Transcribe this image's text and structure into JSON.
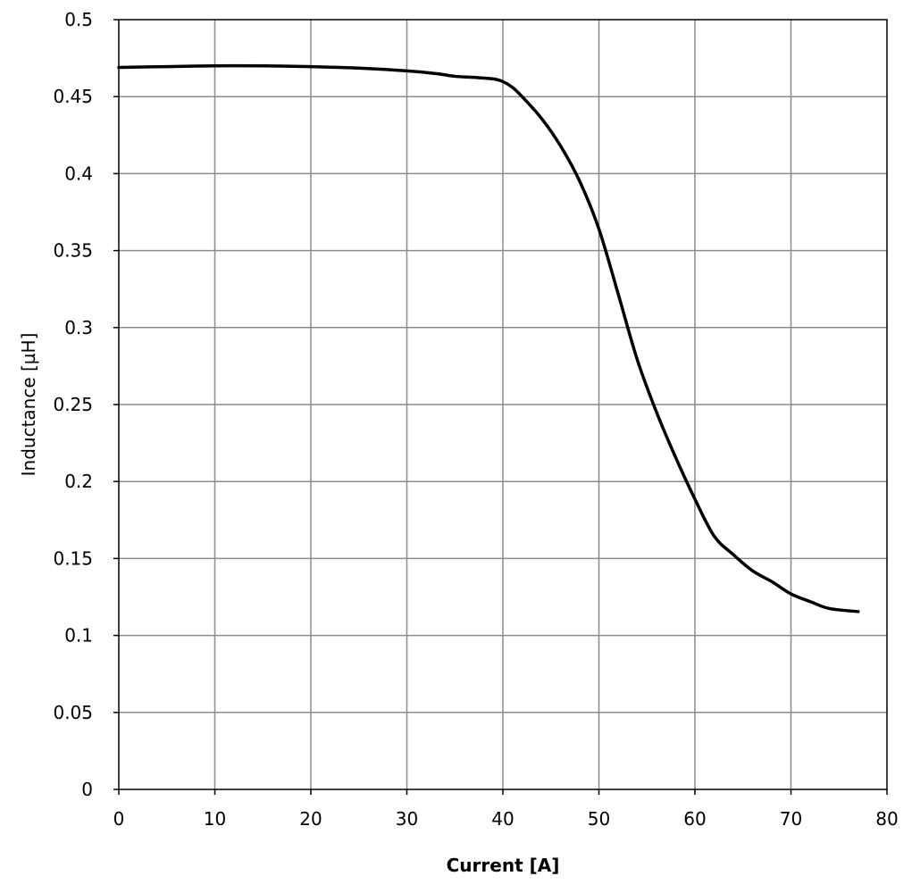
{
  "chart_data": {
    "type": "line",
    "xlabel": "Current [A]",
    "ylabel": "Inductance [µH]",
    "xlim": [
      0,
      80
    ],
    "ylim": [
      0,
      0.5
    ],
    "x_ticks": [
      0,
      10,
      20,
      30,
      40,
      50,
      60,
      70,
      80
    ],
    "y_ticks": [
      0,
      0.05,
      0.1,
      0.15,
      0.2,
      0.25,
      0.3,
      0.35,
      0.4,
      0.45,
      0.5
    ],
    "x_tick_labels": [
      "0",
      "10",
      "20",
      "30",
      "40",
      "50",
      "60",
      "70",
      "80"
    ],
    "y_tick_labels": [
      "0",
      "0.05",
      "0.1",
      "0.15",
      "0.2",
      "0.25",
      "0.3",
      "0.35",
      "0.4",
      "0.45",
      "0.5"
    ],
    "grid": true,
    "series": [
      {
        "color": "#000000",
        "x": [
          0,
          5,
          10,
          15,
          20,
          25,
          30,
          33,
          35,
          37,
          39,
          40,
          41,
          42,
          44,
          46,
          48,
          50,
          52,
          54,
          56,
          58,
          60,
          62,
          64,
          66,
          68,
          70,
          72,
          74,
          77
        ],
        "y": [
          0.469,
          0.4695,
          0.47,
          0.47,
          0.4695,
          0.4685,
          0.4667,
          0.465,
          0.4632,
          0.4625,
          0.4615,
          0.4598,
          0.456,
          0.45,
          0.436,
          0.418,
          0.395,
          0.364,
          0.322,
          0.279,
          0.245,
          0.2155,
          0.1885,
          0.1645,
          0.1525,
          0.142,
          0.135,
          0.127,
          0.122,
          0.1175,
          0.1155
        ]
      }
    ]
  }
}
